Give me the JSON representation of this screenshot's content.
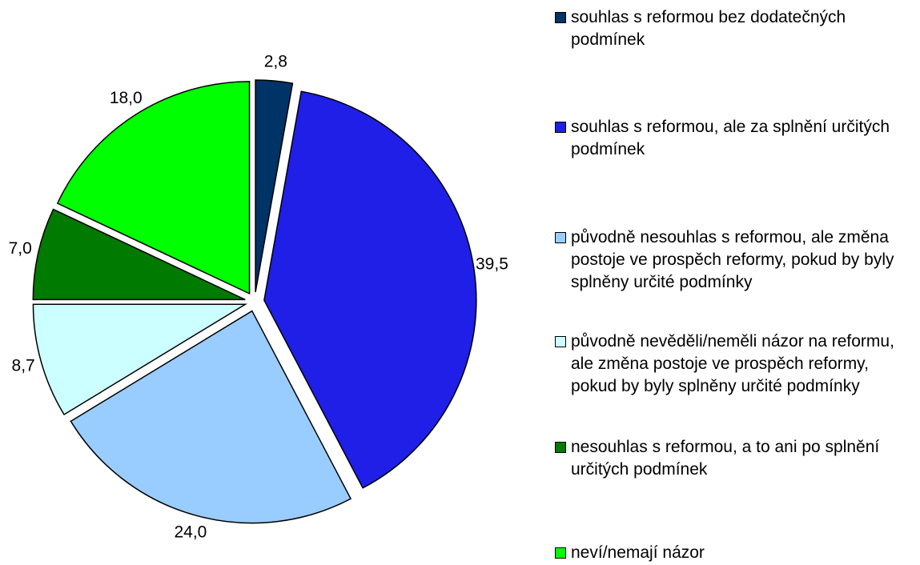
{
  "chart_data": {
    "type": "pie",
    "categories": [
      "souhlas s reformou bez dodatečných podmínek",
      "souhlas s reformou, ale za splnění určitých podmínek",
      "původně nesouhlas s reformou, ale změna postoje ve prospěch reformy, pokud by byly splněny určité podmínky",
      "původně nevěděli/neměli názor na reformu, ale změna postoje ve prospěch reformy, pokud by byly splněny určité podmínky",
      "nesouhlas s reformou, a to ani po splnění určitých podmínek",
      "neví/nemají názor"
    ],
    "values": [
      2.8,
      39.5,
      24.0,
      8.7,
      7.0,
      18.0
    ],
    "value_labels": [
      "2,8",
      "39,5",
      "24,0",
      "8,7",
      "7,0",
      "18,0"
    ],
    "colors": [
      "#003366",
      "#1f1fe8",
      "#99ccff",
      "#ccffff",
      "#007a00",
      "#00ff00"
    ],
    "legend": "right"
  }
}
